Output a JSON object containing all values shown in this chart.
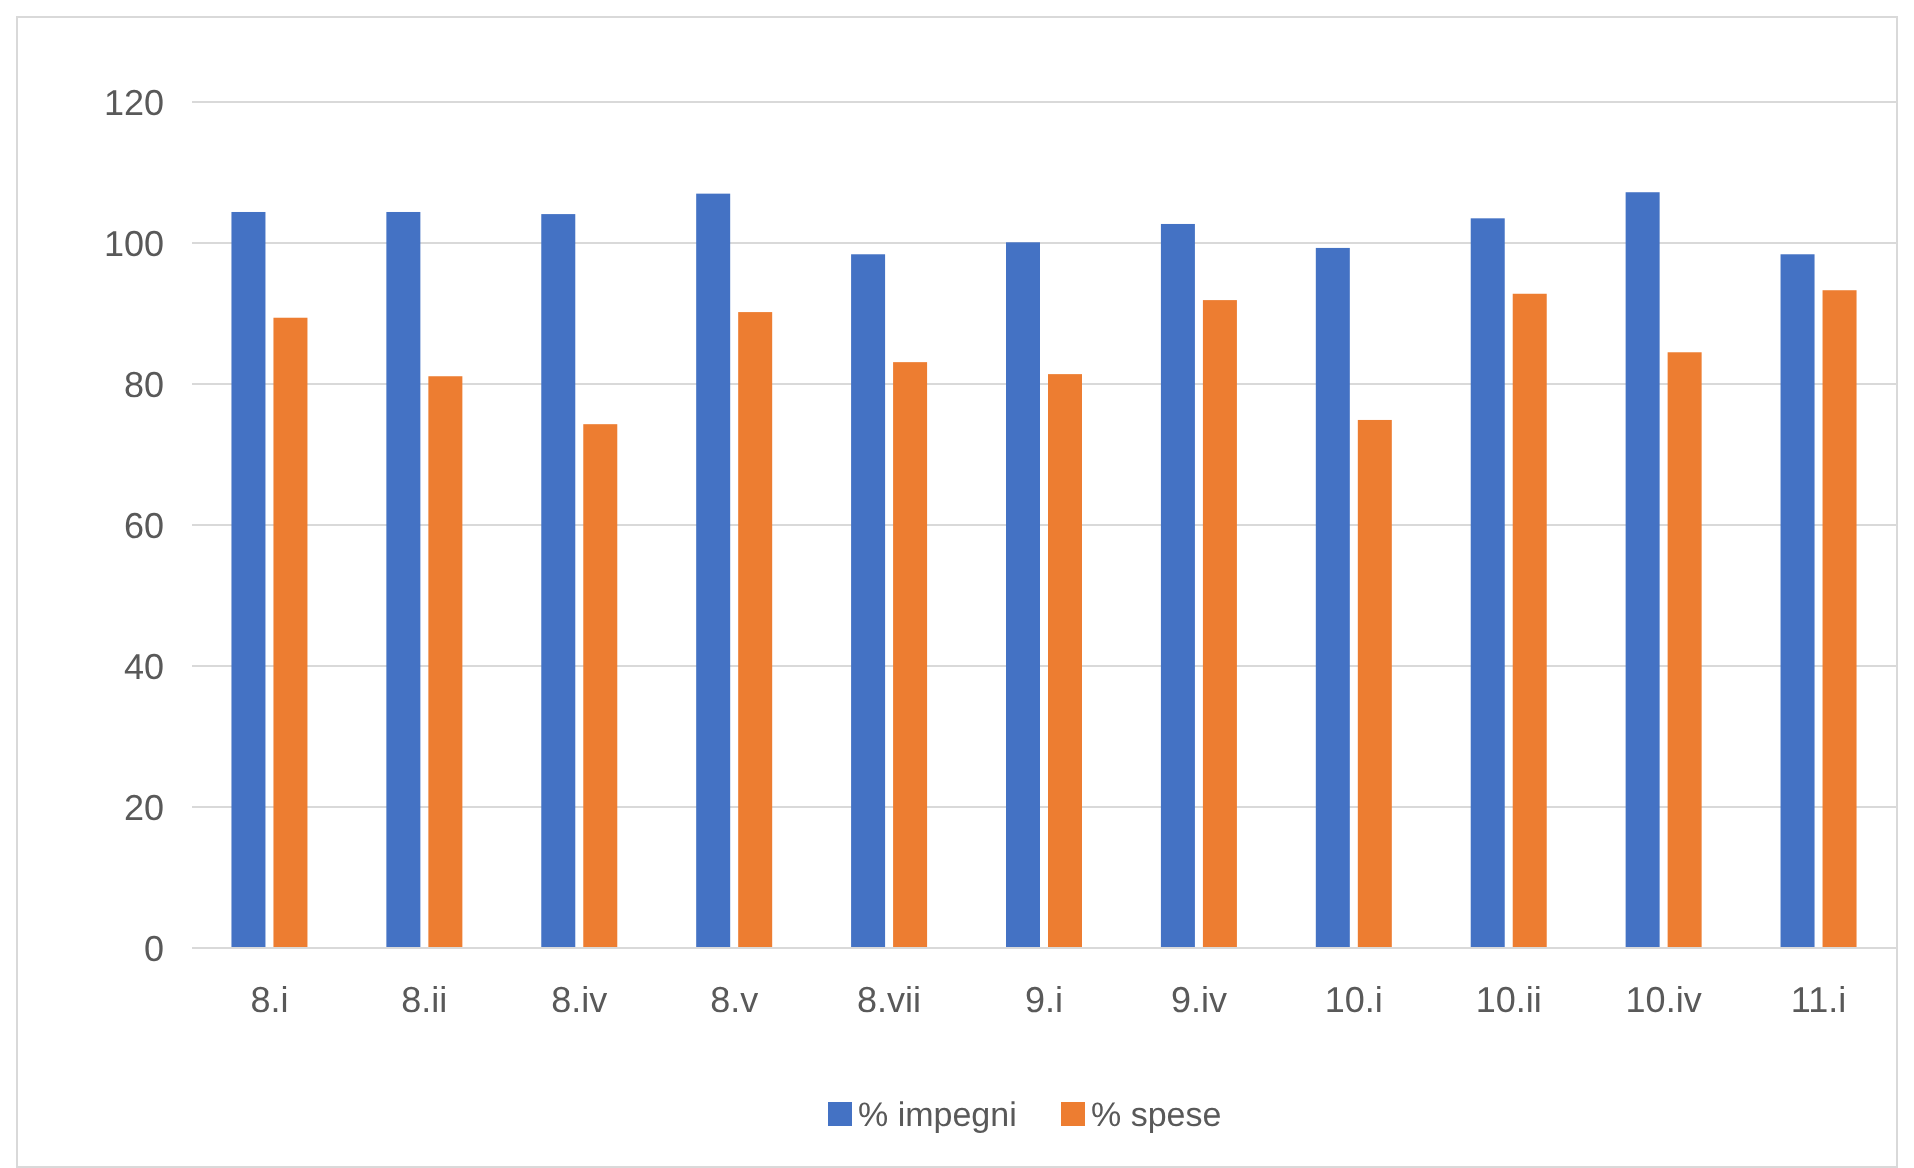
{
  "chart_data": {
    "type": "bar",
    "categories": [
      "8.i",
      "8.ii",
      "8.iv",
      "8.v",
      "8.vii",
      "9.i",
      "9.iv",
      "10.i",
      "10.ii",
      "10.iv",
      "11.i"
    ],
    "series": [
      {
        "name": "% impegni",
        "color": "#4472c4",
        "values": [
          104.4,
          104.4,
          104.1,
          107,
          98.4,
          100.1,
          102.7,
          99.3,
          103.5,
          107.2,
          98.4
        ]
      },
      {
        "name": "% spese",
        "color": "#ed7d31",
        "values": [
          89.4,
          81.1,
          74.3,
          90.2,
          83.1,
          81.4,
          91.9,
          74.9,
          92.8,
          84.5,
          93.3
        ]
      }
    ],
    "ylim": [
      0,
      120
    ],
    "yticks": [
      0,
      20,
      40,
      60,
      80,
      100,
      120
    ],
    "grid": "y",
    "legend": "bottom"
  }
}
